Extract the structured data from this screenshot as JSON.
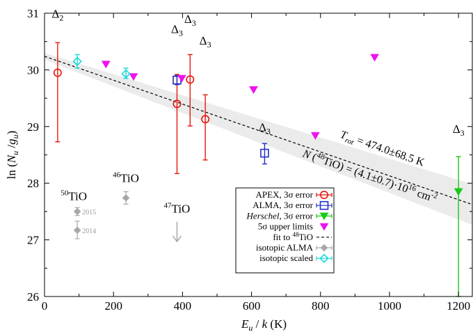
{
  "chart_data": {
    "type": "scatter",
    "xlabel": "E_u / k (K)",
    "ylabel": "ln (N_u / g_u)",
    "xlim": [
      0,
      1240
    ],
    "ylim": [
      26,
      31
    ],
    "xticks": [
      0,
      200,
      400,
      600,
      800,
      1000,
      1200
    ],
    "yticks": [
      26,
      27,
      28,
      29,
      30,
      31
    ],
    "colors": {
      "apex": "#e8160c",
      "alma": "#1f2fc8",
      "herschel": "#18c918",
      "limits": "#ee12ee",
      "fit": "#000000",
      "isotopic_alma": "#a8a8a8",
      "isotopic_scaled": "#17d9d9",
      "band": "#ebebeb"
    },
    "fit": {
      "slope": -0.00211,
      "intercept": 30.24,
      "band_halfwidth_at_0": 0.06,
      "band_halfwidth_at_1240": 0.36
    },
    "fit_labels": {
      "trot": "T_rot = 474.0±68.5 K",
      "column": "N (48TiO) = (4.1±0.7)·10^16 cm^-2"
    },
    "series": [
      {
        "name": "APEX, 3σ error",
        "marker": "circle",
        "points": [
          {
            "x": 38,
            "y": 29.95,
            "lo": 28.73,
            "hi": 30.48
          },
          {
            "x": 384,
            "y": 29.4,
            "lo": 28.17,
            "hi": 29.92
          },
          {
            "x": 422,
            "y": 29.83,
            "lo": 29.01,
            "hi": 30.27
          },
          {
            "x": 466,
            "y": 29.13,
            "lo": 28.41,
            "hi": 29.56
          }
        ]
      },
      {
        "name": "ALMA, 3σ error",
        "marker": "square",
        "points": [
          {
            "x": 384,
            "y": 29.82,
            "lo": 29.74,
            "hi": 29.9
          },
          {
            "x": 638,
            "y": 28.53,
            "lo": 28.34,
            "hi": 28.7
          }
        ]
      },
      {
        "name": "Herschel, 3σ error",
        "marker": "triangle",
        "points": [
          {
            "x": 1200,
            "y": 27.85,
            "lo": 26.0,
            "hi": 28.47
          }
        ]
      },
      {
        "name": "5σ upper limits",
        "marker": "triangle-filled",
        "points": [
          {
            "x": 178,
            "y": 30.1
          },
          {
            "x": 258,
            "y": 29.88
          },
          {
            "x": 398,
            "y": 29.85
          },
          {
            "x": 606,
            "y": 29.65
          },
          {
            "x": 785,
            "y": 28.84
          },
          {
            "x": 957,
            "y": 30.22
          }
        ]
      },
      {
        "name": "fit to 48TiO",
        "marker": "dashed-line",
        "points": []
      },
      {
        "name": "isotopic ALMA",
        "marker": "diamond",
        "points": [
          {
            "x": 95,
            "y": 27.5,
            "lo": 27.43,
            "hi": 27.57,
            "label": "2015"
          },
          {
            "x": 95,
            "y": 27.17,
            "lo": 27.02,
            "hi": 27.33,
            "label": "2014"
          },
          {
            "x": 236,
            "y": 27.74,
            "lo": 27.63,
            "hi": 27.85
          }
        ]
      },
      {
        "name": "isotopic scaled",
        "marker": "diamond-open",
        "points": [
          {
            "x": 95,
            "y": 30.15,
            "lo": 30.03,
            "hi": 30.27
          },
          {
            "x": 236,
            "y": 29.93,
            "lo": 29.85,
            "hi": 30.03
          }
        ]
      }
    ],
    "upper_limit_arrow": {
      "x": 384,
      "y_top": 27.32,
      "y_bottom": 26.97
    },
    "annotations": [
      {
        "text": "Δ2",
        "x": 38,
        "y": 30.92
      },
      {
        "text": "Δ3",
        "x": 384,
        "y": 30.65
      },
      {
        "text": "Δ3",
        "x": 422,
        "y": 30.83
      },
      {
        "text": "Δ3",
        "x": 466,
        "y": 30.45
      },
      {
        "text": "Δ3",
        "x": 638,
        "y": 28.92
      },
      {
        "text": "Δ3",
        "x": 1200,
        "y": 28.89
      }
    ],
    "isotope_labels": [
      {
        "text": "50TiO",
        "x": 85,
        "y": 27.7
      },
      {
        "text": "46TiO",
        "x": 236,
        "y": 28.02
      },
      {
        "text": "47TiO",
        "x": 384,
        "y": 27.48
      }
    ],
    "legend_position": "bottom-right"
  }
}
